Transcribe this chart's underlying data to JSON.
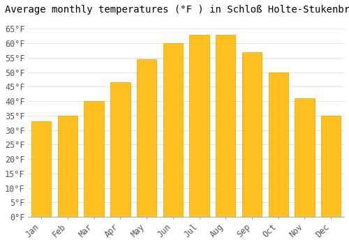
{
  "title": "Average monthly temperatures (°F ) in Schloß Holte-Stukenbrock",
  "months": [
    "Jan",
    "Feb",
    "Mar",
    "Apr",
    "May",
    "Jun",
    "Jul",
    "Aug",
    "Sep",
    "Oct",
    "Nov",
    "Dec"
  ],
  "values": [
    33,
    35,
    40,
    46.5,
    54.5,
    60,
    63,
    63,
    57,
    50,
    41,
    35
  ],
  "bar_color": "#FFC020",
  "bar_edge_color": "#E8A000",
  "background_color": "#FFFFFF",
  "plot_bg_color": "#FFFFFF",
  "grid_color": "#DDDDDD",
  "ylim": [
    0,
    68
  ],
  "yticks": [
    0,
    5,
    10,
    15,
    20,
    25,
    30,
    35,
    40,
    45,
    50,
    55,
    60,
    65
  ],
  "title_fontsize": 10,
  "tick_fontsize": 8.5,
  "font_family": "monospace",
  "bar_width": 0.75
}
